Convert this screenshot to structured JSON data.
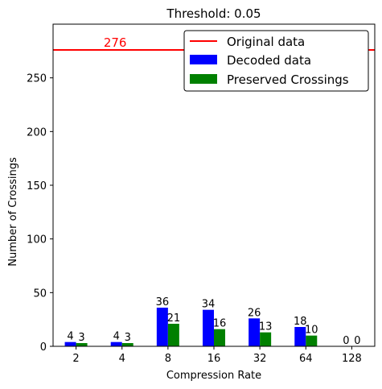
{
  "chart_data": {
    "type": "bar",
    "title": "Threshold: 0.05",
    "xlabel": "Compression Rate",
    "ylabel": "Number of Crossings",
    "categories": [
      "2",
      "4",
      "8",
      "16",
      "32",
      "64",
      "128"
    ],
    "ylim": [
      0,
      300
    ],
    "yticks": [
      0,
      50,
      100,
      150,
      200,
      250
    ],
    "series": [
      {
        "name": "Decoded data",
        "color": "#0000ff",
        "values": [
          4,
          4,
          36,
          34,
          26,
          18,
          0
        ]
      },
      {
        "name": "Preserved Crossings",
        "color": "#008000",
        "values": [
          3,
          3,
          21,
          16,
          13,
          10,
          0
        ]
      }
    ],
    "reference_line": {
      "name": "Original data",
      "value": 276,
      "label": "276",
      "color": "#ff0000"
    },
    "legend": {
      "placement": "top-right",
      "entries": [
        "Original data",
        "Decoded data",
        "Preserved Crossings"
      ]
    },
    "grid": false
  }
}
